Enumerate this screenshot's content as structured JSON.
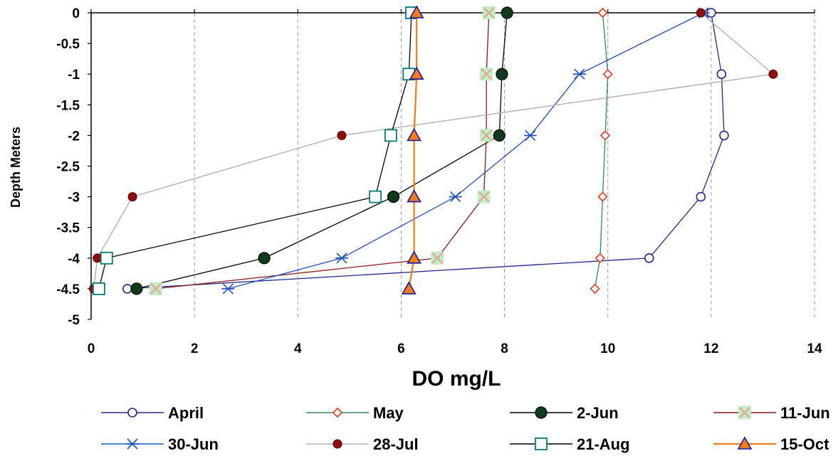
{
  "chart_data": {
    "type": "line",
    "title": "",
    "xlabel": "DO mg/L",
    "ylabel": "Depth Meters",
    "xlim": [
      0,
      14
    ],
    "ylim": [
      -5,
      0
    ],
    "x_ticks": [
      "0",
      "2",
      "4",
      "6",
      "8",
      "10",
      "12",
      "14"
    ],
    "y_ticks": [
      "0",
      "-0.5",
      "-1",
      "-1.5",
      "-2",
      "-2.5",
      "-3",
      "-3.5",
      "-4",
      "-4.5",
      "-5"
    ],
    "grid": "dashed vertical gridlines",
    "legend_position": "bottom",
    "series": [
      {
        "name": "April",
        "color": "#1f2a8c",
        "marker": "open-circle",
        "points": [
          [
            12.0,
            0
          ],
          [
            12.2,
            -1
          ],
          [
            12.25,
            -2
          ],
          [
            11.8,
            -3
          ],
          [
            10.8,
            -4
          ],
          [
            0.7,
            -4.5
          ]
        ]
      },
      {
        "name": "May",
        "color": "#2e8b57",
        "marker": "open-diamond",
        "marker_color": "#e23a1e",
        "points": [
          [
            9.9,
            0
          ],
          [
            10.0,
            -1
          ],
          [
            9.95,
            -2
          ],
          [
            9.9,
            -3
          ],
          [
            9.85,
            -4
          ],
          [
            9.75,
            -4.5
          ]
        ]
      },
      {
        "name": "2-Jun",
        "color": "#000000",
        "marker": "filled-circle-dark-green",
        "points": [
          [
            8.05,
            0
          ],
          [
            7.95,
            -1
          ],
          [
            7.9,
            -2
          ],
          [
            5.85,
            -3
          ],
          [
            3.35,
            -4
          ],
          [
            0.88,
            -4.5
          ]
        ]
      },
      {
        "name": "11-Jun",
        "color": "#8b1a1a",
        "marker": "x-box",
        "points": [
          [
            7.7,
            0
          ],
          [
            7.65,
            -1
          ],
          [
            7.65,
            -2
          ],
          [
            7.6,
            -3
          ],
          [
            6.7,
            -4
          ],
          [
            1.25,
            -4.5
          ]
        ]
      },
      {
        "name": "30-Jun",
        "color": "#1f4fbf",
        "marker": "asterisk",
        "points": [
          [
            11.85,
            0
          ],
          [
            9.45,
            -1
          ],
          [
            8.5,
            -2
          ],
          [
            7.05,
            -3
          ],
          [
            4.85,
            -4
          ],
          [
            2.65,
            -4.5
          ]
        ]
      },
      {
        "name": "28-Jul",
        "color": "#b0b0b0",
        "marker": "filled-circle-red",
        "points": [
          [
            11.8,
            0
          ],
          [
            13.2,
            -1
          ],
          [
            4.85,
            -2
          ],
          [
            0.8,
            -3
          ],
          [
            0.12,
            -4
          ],
          [
            0.05,
            -4.5
          ]
        ]
      },
      {
        "name": "21-Aug",
        "color": "#000000",
        "marker": "open-square",
        "points": [
          [
            6.2,
            0
          ],
          [
            6.15,
            -1
          ],
          [
            5.8,
            -2
          ],
          [
            5.5,
            -3
          ],
          [
            0.3,
            -4
          ],
          [
            0.15,
            -4.5
          ]
        ]
      },
      {
        "name": "15-Oct",
        "color": "#f07c1b",
        "marker": "triangle",
        "points": [
          [
            6.3,
            0
          ],
          [
            6.3,
            -1
          ],
          [
            6.25,
            -2
          ],
          [
            6.25,
            -3
          ],
          [
            6.25,
            -4
          ],
          [
            6.15,
            -4.5
          ]
        ]
      }
    ]
  }
}
